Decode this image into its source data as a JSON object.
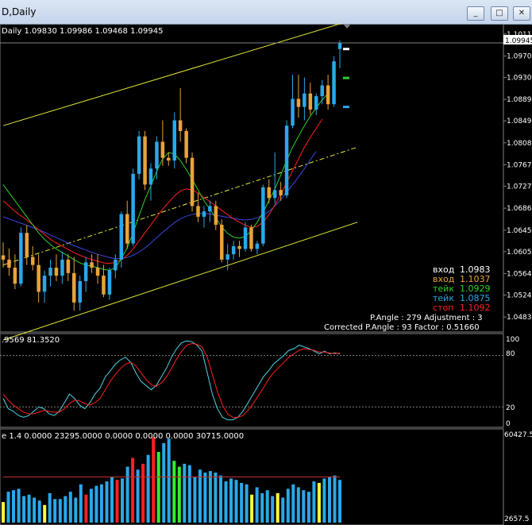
{
  "window": {
    "title": "D,Daily",
    "buttons": [
      "_",
      "□",
      "✕"
    ]
  },
  "colors": {
    "bull": "#2aa8e8",
    "bear": "#e8a33a",
    "channel": "#e8e83a",
    "ma_green": "#2bd12b",
    "ma_red": "#ff2020",
    "ma_blue": "#3a48e0",
    "stoch_main": "#4fd3e8",
    "stoch_signal": "#ff2020",
    "vol_bar": "#2aa8e8"
  },
  "price_panel": {
    "header": "Daily  1.09830 1.09986 1.09468 1.09945",
    "current_price": "1.09945",
    "ylim": [
      1.0455,
      1.103
    ],
    "axis_ticks": [
      "1.10110",
      "1.09700",
      "1.09300",
      "1.08890",
      "1.08490",
      "1.08080",
      "1.07670",
      "1.07270",
      "1.06860",
      "1.06450",
      "1.06050",
      "1.05640",
      "1.05240",
      "1.04830"
    ],
    "info_lines": [
      {
        "label": "вход",
        "value": "1.0983",
        "color": "#ffffff"
      },
      {
        "label": "вход",
        "value": "1.1037",
        "color": "#e8a33a"
      },
      {
        "label": "тейк",
        "value": "1.0929",
        "color": "#2bd12b"
      },
      {
        "label": "тейк",
        "value": "1.0875",
        "color": "#2aa8e8"
      },
      {
        "label": "стоп",
        "value": "1.1092",
        "color": "#ff2020"
      }
    ],
    "stats_line1": "P.Angle : 279   Adjustment : 3",
    "stats_line2": "Corrected P.Angle : 93   Factor : 0.51660"
  },
  "stoch_panel": {
    "header": ".9569 81.3520",
    "axis_ticks": [
      "100",
      "80",
      "20",
      "0"
    ],
    "ylim": [
      0,
      100
    ]
  },
  "volume_panel": {
    "header": "e 1.4 0.0000 23295.0000 0.0000 0.0000 0.0000 30715.0000",
    "axis_ticks": [
      "60427.5",
      "2657.5"
    ],
    "ylim": [
      0,
      60427.5
    ]
  },
  "chart_data": {
    "type": "candlestick",
    "title": "",
    "candles": [
      [
        1.0598,
        1.0622,
        1.0575,
        1.059
      ],
      [
        1.059,
        1.0611,
        1.056,
        1.0575
      ],
      [
        1.0575,
        1.06,
        1.0535,
        1.0545
      ],
      [
        1.0545,
        1.065,
        1.054,
        1.064
      ],
      [
        1.064,
        1.0655,
        1.058,
        1.0595
      ],
      [
        1.0595,
        1.0615,
        1.057,
        1.058
      ],
      [
        1.058,
        1.06,
        1.051,
        1.053
      ],
      [
        1.053,
        1.057,
        1.051,
        1.056
      ],
      [
        1.056,
        1.059,
        1.054,
        1.0575
      ],
      [
        1.0575,
        1.06,
        1.055,
        1.056
      ],
      [
        1.056,
        1.0605,
        1.0545,
        1.059
      ],
      [
        1.059,
        1.06,
        1.055,
        1.0565
      ],
      [
        1.0565,
        1.0595,
        1.0495,
        1.051
      ],
      [
        1.051,
        1.056,
        1.0495,
        1.055
      ],
      [
        1.055,
        1.0595,
        1.053,
        1.0585
      ],
      [
        1.0585,
        1.06,
        1.0565,
        1.0575
      ],
      [
        1.0575,
        1.06,
        1.0545,
        1.056
      ],
      [
        1.056,
        1.058,
        1.052,
        1.0525
      ],
      [
        1.0525,
        1.0575,
        1.0515,
        1.057
      ],
      [
        1.057,
        1.06,
        1.0555,
        1.059
      ],
      [
        1.059,
        1.068,
        1.0575,
        1.0675
      ],
      [
        1.0675,
        1.07,
        1.061,
        1.062
      ],
      [
        1.062,
        1.076,
        1.0615,
        1.075
      ],
      [
        1.075,
        1.083,
        1.074,
        1.082
      ],
      [
        1.082,
        1.083,
        1.072,
        1.073
      ],
      [
        1.073,
        1.077,
        1.07,
        1.076
      ],
      [
        1.076,
        1.082,
        1.074,
        1.081
      ],
      [
        1.081,
        1.085,
        1.0765,
        1.078
      ],
      [
        1.078,
        1.079,
        1.0765,
        1.0775
      ],
      [
        1.0775,
        1.0865,
        1.076,
        1.085
      ],
      [
        1.085,
        1.091,
        1.081,
        1.083
      ],
      [
        1.083,
        1.0835,
        1.077,
        1.078
      ],
      [
        1.078,
        1.079,
        1.068,
        1.069
      ],
      [
        1.069,
        1.0715,
        1.066,
        1.067
      ],
      [
        1.067,
        1.069,
        1.065,
        1.068
      ],
      [
        1.068,
        1.07,
        1.066,
        1.069
      ],
      [
        1.069,
        1.07,
        1.0645,
        1.0655
      ],
      [
        1.0655,
        1.0665,
        1.0585,
        1.059
      ],
      [
        1.059,
        1.062,
        1.057,
        1.06
      ],
      [
        1.06,
        1.0625,
        1.059,
        1.0615
      ],
      [
        1.0615,
        1.0625,
        1.0595,
        1.061
      ],
      [
        1.061,
        1.066,
        1.0605,
        1.065
      ],
      [
        1.065,
        1.0655,
        1.0605,
        1.061
      ],
      [
        1.061,
        1.0625,
        1.06,
        1.062
      ],
      [
        1.062,
        1.073,
        1.0615,
        1.0725
      ],
      [
        1.0725,
        1.074,
        1.0695,
        1.0705
      ],
      [
        1.0705,
        1.079,
        1.0695,
        1.072
      ],
      [
        1.072,
        1.0735,
        1.07,
        1.071
      ],
      [
        1.071,
        1.085,
        1.0705,
        1.084
      ],
      [
        1.084,
        1.0935,
        1.0835,
        1.089
      ],
      [
        1.089,
        1.0935,
        1.0855,
        1.0875
      ],
      [
        1.0875,
        1.093,
        1.085,
        1.09
      ],
      [
        1.09,
        1.092,
        1.086,
        1.087
      ],
      [
        1.087,
        1.09,
        1.086,
        1.0895
      ],
      [
        1.0895,
        1.0925,
        1.088,
        1.0915
      ],
      [
        1.0915,
        1.0935,
        1.087,
        1.088
      ],
      [
        1.088,
        1.097,
        1.0875,
        1.096
      ],
      [
        1.0983,
        1.0999,
        1.0947,
        1.0995
      ]
    ],
    "ma_green": [
      1.073,
      1.0715,
      1.07,
      1.0685,
      1.067,
      1.0655,
      1.064,
      1.0628,
      1.0618,
      1.061,
      1.0603,
      1.0597,
      1.059,
      1.0584,
      1.058,
      1.0578,
      1.0575,
      1.0572,
      1.057,
      1.0575,
      1.0592,
      1.0612,
      1.064,
      1.0672,
      1.0702,
      1.0728,
      1.0755,
      1.0778,
      1.079,
      1.0787,
      1.0775,
      1.0758,
      1.074,
      1.072,
      1.07,
      1.0684,
      1.0668,
      1.0651,
      1.0639,
      1.0632,
      1.063,
      1.0633,
      1.0644,
      1.066,
      1.0678,
      1.07,
      1.0722,
      1.0748,
      1.0775,
      1.08,
      1.082,
      1.084,
      1.0858,
      1.0873,
      1.0888,
      1.09
    ],
    "ma_red": [
      1.07,
      1.069,
      1.068,
      1.0672,
      1.0664,
      1.0655,
      1.0646,
      1.0637,
      1.0628,
      1.0621,
      1.0615,
      1.0609,
      1.0603,
      1.0598,
      1.0594,
      1.059,
      1.0587,
      1.0584,
      1.0583,
      1.0585,
      1.059,
      1.0598,
      1.061,
      1.0625,
      1.064,
      1.0655,
      1.067,
      1.0684,
      1.0697,
      1.0709,
      1.0718,
      1.0722,
      1.072,
      1.0714,
      1.0706,
      1.0698,
      1.069,
      1.0682,
      1.0674,
      1.0666,
      1.066,
      1.0654,
      1.065,
      1.0652,
      1.066,
      1.0674,
      1.0692,
      1.0712,
      1.0734,
      1.0756,
      1.0778,
      1.08,
      1.0818,
      1.0835,
      1.0852
    ],
    "ma_blue": [
      1.067,
      1.0666,
      1.0662,
      1.0658,
      1.0654,
      1.065,
      1.0646,
      1.0641,
      1.0636,
      1.0631,
      1.0626,
      1.0621,
      1.0616,
      1.0612,
      1.0608,
      1.0604,
      1.06,
      1.0597,
      1.0594,
      1.0592,
      1.0592,
      1.0594,
      1.0598,
      1.0604,
      1.0612,
      1.0621,
      1.0631,
      1.0641,
      1.065,
      1.0659,
      1.0666,
      1.0671,
      1.0674,
      1.0676,
      1.0676,
      1.0675,
      1.0673,
      1.0671,
      1.0669,
      1.0667,
      1.0665,
      1.0664,
      1.0665,
      1.0668,
      1.0673,
      1.068,
      1.069,
      1.0702,
      1.0716,
      1.073,
      1.0744,
      1.076,
      1.0776,
      1.0792
    ],
    "channel_upper": [
      [
        0,
        1.084
      ],
      [
        60,
        1.104
      ]
    ],
    "channel_mid": [
      [
        0,
        1.058
      ],
      [
        60,
        1.08
      ]
    ],
    "channel_lower": [
      [
        0,
        1.044
      ],
      [
        60,
        1.066
      ]
    ],
    "stoch_main": [
      30,
      18,
      15,
      10,
      8,
      10,
      15,
      20,
      18,
      12,
      10,
      15,
      25,
      35,
      30,
      22,
      18,
      25,
      35,
      42,
      55,
      62,
      70,
      75,
      78,
      72,
      60,
      50,
      45,
      40,
      45,
      55,
      65,
      78,
      88,
      95,
      97,
      96,
      92,
      85,
      60,
      35,
      18,
      8,
      5,
      5,
      8,
      15,
      25,
      35,
      45,
      55,
      62,
      70,
      75,
      80,
      86,
      88,
      92,
      90,
      88,
      85,
      82,
      85,
      82,
      83,
      82
    ],
    "stoch_signal": [
      35,
      28,
      22,
      18,
      14,
      12,
      12,
      14,
      16,
      15,
      14,
      14,
      18,
      24,
      28,
      27,
      24,
      22,
      25,
      30,
      40,
      50,
      58,
      65,
      70,
      72,
      68,
      60,
      52,
      46,
      44,
      48,
      55,
      65,
      76,
      85,
      92,
      94,
      93,
      90,
      78,
      58,
      38,
      22,
      12,
      8,
      8,
      10,
      16,
      24,
      33,
      42,
      52,
      60,
      66,
      72,
      78,
      82,
      86,
      88,
      87,
      86,
      84,
      84,
      83,
      82,
      83
    ],
    "volume": [
      14000,
      21000,
      22000,
      23000,
      18000,
      19000,
      17000,
      15000,
      12000,
      20000,
      16000,
      16000,
      18000,
      21000,
      17000,
      26000,
      19000,
      23000,
      25000,
      26000,
      28000,
      31000,
      29000,
      30000,
      38000,
      44000,
      36000,
      40000,
      46000,
      58000,
      48000,
      54000,
      57000,
      42000,
      38000,
      40000,
      39000,
      31000,
      36000,
      34000,
      35000,
      34000,
      32000,
      28000,
      30000,
      29000,
      27000,
      26000,
      19000,
      24000,
      20000,
      22000,
      18000,
      20000,
      17000,
      23000,
      26000,
      24000,
      22000,
      21000,
      28000,
      27000,
      30000,
      31000,
      32000,
      29000
    ],
    "volume_colors": [
      "#ffff33",
      "#2aa8e8",
      "#2aa8e8",
      "#2aa8e8",
      "#2aa8e8",
      "#2aa8e8",
      "#2aa8e8",
      "#2aa8e8",
      "#ffff33",
      "#2aa8e8",
      "#2aa8e8",
      "#2aa8e8",
      "#2aa8e8",
      "#2aa8e8",
      "#2aa8e8",
      "#2aa8e8",
      "#ff2020",
      "#2aa8e8",
      "#2aa8e8",
      "#2aa8e8",
      "#2aa8e8",
      "#2aa8e8",
      "#ff2020",
      "#2aa8e8",
      "#2aa8e8",
      "#ff2020",
      "#2aa8e8",
      "#ff2020",
      "#2aa8e8",
      "#ff2020",
      "#33ee33",
      "#2aa8e8",
      "#2aa8e8",
      "#33ee33",
      "#33ee33",
      "#2aa8e8",
      "#2aa8e8",
      "#2aa8e8",
      "#2aa8e8",
      "#2aa8e8",
      "#2aa8e8",
      "#2aa8e8",
      "#2aa8e8",
      "#2aa8e8",
      "#2aa8e8",
      "#2aa8e8",
      "#2aa8e8",
      "#2aa8e8",
      "#ffff33",
      "#2aa8e8",
      "#2aa8e8",
      "#2aa8e8",
      "#2aa8e8",
      "#ffff33",
      "#2aa8e8",
      "#2aa8e8",
      "#2aa8e8",
      "#2aa8e8",
      "#2aa8e8",
      "#2aa8e8",
      "#2aa8e8",
      "#ffff33",
      "#2aa8e8",
      "#2aa8e8",
      "#2aa8e8",
      "#2aa8e8"
    ],
    "volume_ma": 31000
  }
}
